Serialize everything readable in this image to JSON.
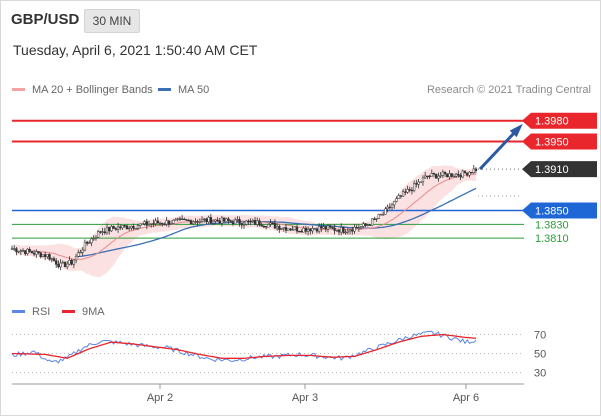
{
  "header": {
    "symbol": "GBP/USD",
    "timeframe": "30 MIN"
  },
  "timestamp": "Tuesday, April 6, 2021 1:50:40 AM CET",
  "legend": {
    "ma_bb": "MA 20 + Bollinger Bands",
    "ma50": "MA 50"
  },
  "credit": "Research © 2021 Trading Central",
  "rsi_legend": {
    "rsi": "RSI",
    "ma9": "9MA"
  },
  "colors": {
    "resistance": "#e8262b",
    "support": "#1f67d6",
    "minor_support": "#2a9d3a",
    "price_tag": "#333333",
    "ma20": "#f4a3a3",
    "ma50": "#3b6fb6",
    "arrow": "#2c5aa0",
    "rsi": "#5b86e5",
    "rsi_ma": "#e8262b"
  },
  "chart_data": [
    {
      "type": "candlestick",
      "x_labels": [
        "Apr 2",
        "Apr 3",
        "Apr 6"
      ],
      "ylim": [
        1.3735,
        1.401
      ],
      "levels": [
        {
          "value": 1.398,
          "label": "1.3980",
          "kind": "resistance"
        },
        {
          "value": 1.395,
          "label": "1.3950",
          "kind": "resistance"
        },
        {
          "value": 1.391,
          "label": "1.3910",
          "kind": "current"
        },
        {
          "value": 1.385,
          "label": "1.3850",
          "kind": "support"
        },
        {
          "value": 1.383,
          "label": "1.3830",
          "kind": "minor_support"
        },
        {
          "value": 1.381,
          "label": "1.3810",
          "kind": "minor_support"
        }
      ],
      "price_path": [
        [
          0,
          1.3795
        ],
        [
          8,
          1.379
        ],
        [
          16,
          1.3785
        ],
        [
          22,
          1.377
        ],
        [
          27,
          1.3775
        ],
        [
          33,
          1.38
        ],
        [
          40,
          1.382
        ],
        [
          47,
          1.3825
        ],
        [
          55,
          1.3828
        ],
        [
          65,
          1.3832
        ],
        [
          80,
          1.3835
        ],
        [
          90,
          1.3836
        ],
        [
          100,
          1.3834
        ],
        [
          112,
          1.3832
        ],
        [
          122,
          1.3826
        ],
        [
          130,
          1.3823
        ],
        [
          140,
          1.3825
        ],
        [
          150,
          1.3822
        ],
        [
          160,
          1.3828
        ],
        [
          168,
          1.3845
        ],
        [
          175,
          1.3868
        ],
        [
          182,
          1.3885
        ],
        [
          188,
          1.39
        ],
        [
          198,
          1.3902
        ],
        [
          204,
          1.3903
        ],
        [
          210,
          1.391
        ]
      ],
      "arrow": {
        "from_value": 1.391,
        "to_value": 1.398
      }
    },
    {
      "type": "line",
      "name": "RSI",
      "ylim": [
        20,
        80
      ],
      "ticks": [
        {
          "value": 70,
          "label": "70"
        },
        {
          "value": 50,
          "label": "50"
        },
        {
          "value": 30,
          "label": "30"
        }
      ],
      "series": [
        {
          "name": "RSI",
          "values": [
            [
              0,
              48
            ],
            [
              10,
              52
            ],
            [
              18,
              40
            ],
            [
              25,
              45
            ],
            [
              32,
              56
            ],
            [
              40,
              63
            ],
            [
              50,
              61
            ],
            [
              60,
              58
            ],
            [
              70,
              56
            ],
            [
              80,
              50
            ],
            [
              90,
              44
            ],
            [
              100,
              43
            ],
            [
              110,
              46
            ],
            [
              120,
              47
            ],
            [
              130,
              49
            ],
            [
              140,
              47
            ],
            [
              150,
              45
            ],
            [
              160,
              52
            ],
            [
              170,
              60
            ],
            [
              180,
              68
            ],
            [
              190,
              72
            ],
            [
              200,
              66
            ],
            [
              205,
              62
            ],
            [
              210,
              64
            ]
          ]
        },
        {
          "name": "9MA",
          "values": [
            [
              0,
              50
            ],
            [
              15,
              49
            ],
            [
              25,
              45
            ],
            [
              35,
              55
            ],
            [
              45,
              62
            ],
            [
              55,
              60
            ],
            [
              65,
              57
            ],
            [
              75,
              54
            ],
            [
              85,
              49
            ],
            [
              95,
              45
            ],
            [
              105,
              45
            ],
            [
              115,
              47
            ],
            [
              125,
              48
            ],
            [
              135,
              48
            ],
            [
              145,
              46
            ],
            [
              155,
              47
            ],
            [
              165,
              54
            ],
            [
              175,
              62
            ],
            [
              185,
              68
            ],
            [
              195,
              70
            ],
            [
              205,
              67
            ],
            [
              210,
              66
            ]
          ]
        }
      ]
    }
  ]
}
